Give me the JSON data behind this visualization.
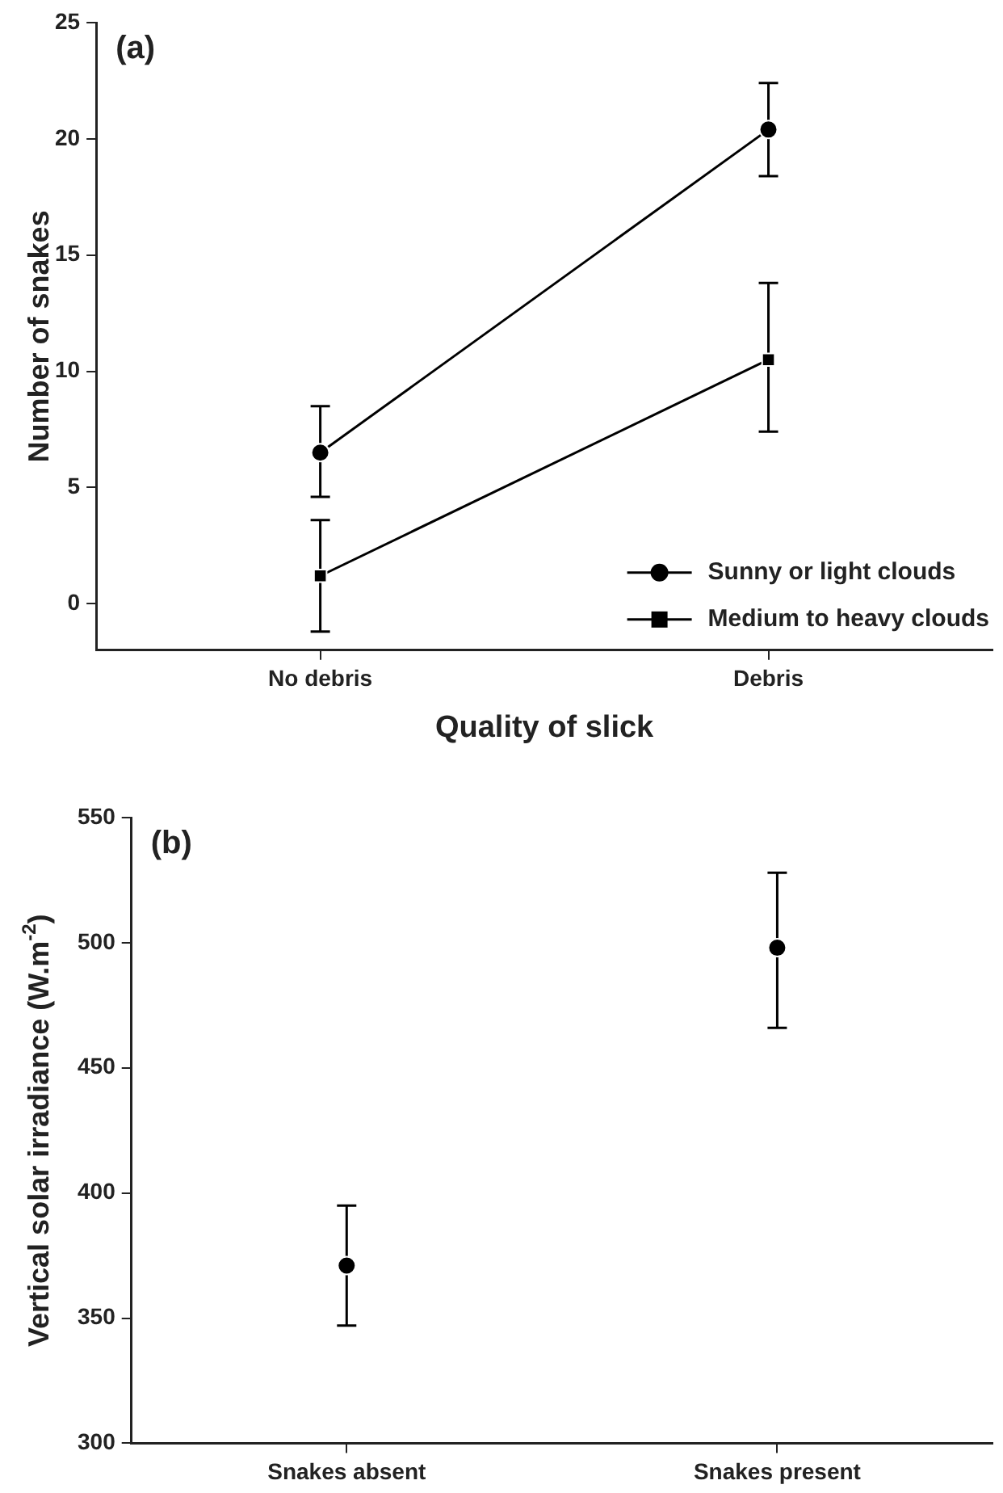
{
  "chart_data": [
    {
      "type": "line",
      "annotations": [
        "(a)"
      ],
      "xlabel": "Quality of slick",
      "ylabel": "Number of snakes",
      "categories": [
        "No debris",
        "Debris"
      ],
      "ylim": [
        -2,
        25
      ],
      "yticks": [
        0,
        5,
        10,
        15,
        20,
        25
      ],
      "grid": false,
      "legend": "bottom right",
      "series": [
        {
          "name": "Sunny or light clouds",
          "color": "#000000",
          "marker": "circle",
          "values": [
            6.5,
            20.4
          ],
          "errors": [
            [
              4.6,
              8.5
            ],
            [
              18.4,
              22.4
            ]
          ]
        },
        {
          "name": "Medium to heavy clouds",
          "color": "#000000",
          "marker": "square",
          "values": [
            1.2,
            10.5
          ],
          "errors": [
            [
              -1.2,
              3.6
            ],
            [
              7.4,
              13.8
            ]
          ]
        }
      ]
    },
    {
      "type": "scatter",
      "annotations": [
        "(b)"
      ],
      "ylabel": "Vertical solar irradiance (W.m$^{-2}$)",
      "categories": [
        "Snakes absent",
        "Snakes present"
      ],
      "ylim": [
        300,
        550
      ],
      "yticks": [
        300,
        350,
        400,
        450,
        500,
        550
      ],
      "grid": false,
      "legend": false,
      "marker": "circle",
      "series": [
        {
          "color": "#000000",
          "values": [
            371,
            498
          ],
          "errors": [
            [
              347,
              395
            ],
            [
              466,
              528
            ]
          ]
        }
      ]
    }
  ]
}
